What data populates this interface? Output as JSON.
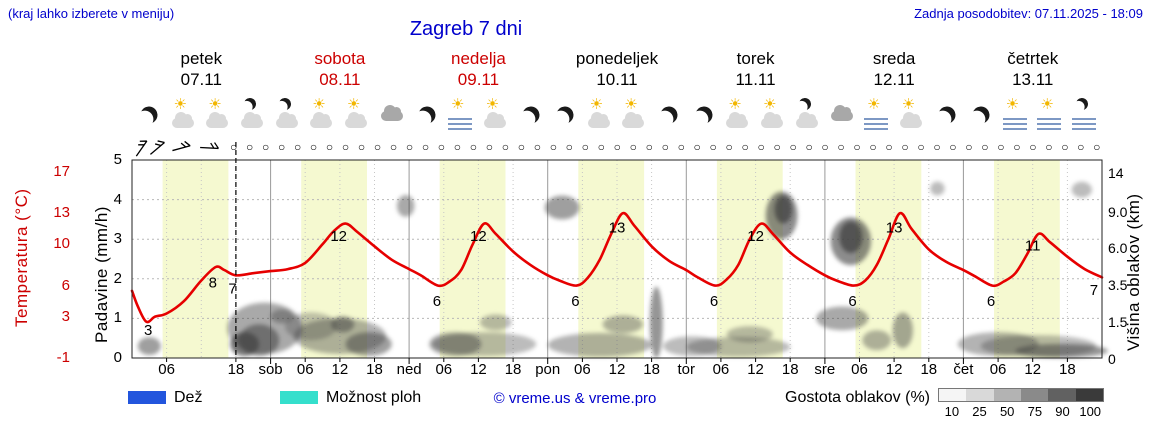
{
  "header": {
    "hint": "(kraj lahko izberete v meniju)",
    "title": "Zagreb 7 dni",
    "updated": "Zadnja posodobitev: 07.11.2025 - 18:09"
  },
  "colors": {
    "link_blue": "#0000cc",
    "weekend_red": "#cc0000",
    "temperature_curve": "#e60000",
    "daylight_band": "#f5f9d0"
  },
  "days": [
    {
      "name": "petek",
      "date": "07.11",
      "red": false
    },
    {
      "name": "sobota",
      "date": "08.11",
      "red": true
    },
    {
      "name": "nedelja",
      "date": "09.11",
      "red": true
    },
    {
      "name": "ponedeljek",
      "date": "10.11",
      "red": false
    },
    {
      "name": "torek",
      "date": "11.11",
      "red": false
    },
    {
      "name": "sreda",
      "date": "12.11",
      "red": false
    },
    {
      "name": "četrtek",
      "date": "13.11",
      "red": false
    }
  ],
  "icons": [
    "moon",
    "partly-sunny",
    "partly-sunny",
    "cloudy-moon",
    "cloudy-moon",
    "partly-sunny",
    "partly-sunny",
    "cloudy",
    "moon",
    "fog-sun",
    "partly-sunny",
    "moon",
    "moon",
    "partly-sunny",
    "partly-sunny",
    "moon",
    "moon",
    "partly-sunny",
    "partly-sunny",
    "cloudy-moon",
    "cloudy",
    "fog-sun",
    "partly-sunny",
    "moon",
    "moon",
    "fog-sun",
    "fog-sun",
    "fog-moon"
  ],
  "wind": {
    "barb_rotations": [
      -10,
      5,
      30,
      48
    ],
    "barb_offsets": [
      0,
      16,
      40,
      68
    ],
    "circle_count": 55,
    "circle_glyph": "○"
  },
  "axes": {
    "temperature": {
      "title": "Temperatura (°C)",
      "ticks": [
        17,
        13,
        10,
        6,
        3,
        -1
      ]
    },
    "precipitation": {
      "title": "Padavine (mm/h)",
      "ticks": [
        5,
        4,
        3,
        2,
        1,
        0
      ]
    },
    "cloud_height": {
      "title": "Višina oblakov (km)",
      "ticks": [
        {
          "label": "14",
          "u": 4.7
        },
        {
          "label": "9.0",
          "u": 3.71
        },
        {
          "label": "6.0",
          "u": 2.8
        },
        {
          "label": "3.5",
          "u": 1.87
        },
        {
          "label": "1.5",
          "u": 0.93
        },
        {
          "label": "0",
          "u": 0
        }
      ]
    }
  },
  "legend": {
    "rain_label": "Dež",
    "rain_color": "#2255dd",
    "showers_label": "Možnost ploh",
    "showers_color": "#35dfcc",
    "copyright": "© vreme.us & vreme.pro",
    "cloud_density_label": "Gostota oblakov (%)",
    "scale": [
      {
        "label": "10",
        "color": "#f5f5f5"
      },
      {
        "label": "25",
        "color": "#d9d9d9"
      },
      {
        "label": "50",
        "color": "#b3b3b3"
      },
      {
        "label": "75",
        "color": "#8a8a8a"
      },
      {
        "label": "90",
        "color": "#616161"
      },
      {
        "label": "100",
        "color": "#3a3a3a"
      }
    ]
  },
  "chart_data": {
    "type": "line",
    "title": "Zagreb 7 dni — meteogram",
    "x_unit": "ure od 07.11.2025 00:00",
    "x_range": [
      0,
      168
    ],
    "y_axes": {
      "precip_mmh": [
        0,
        5
      ],
      "temp_c": [
        -1,
        17.5
      ],
      "cloud_km": [
        0,
        14
      ]
    },
    "now_x": 18,
    "temperature_c": {
      "x": [
        0,
        1,
        2.5,
        4,
        6,
        9,
        12,
        14.5,
        16,
        18,
        21,
        24,
        27,
        30,
        33,
        35,
        37,
        39,
        42,
        45,
        48,
        50,
        53,
        55,
        57,
        59,
        61,
        63,
        66,
        69,
        72,
        74,
        77,
        79,
        81,
        83,
        85,
        87,
        90,
        93,
        96,
        98,
        101,
        103,
        105,
        107,
        109,
        111,
        114,
        117,
        120,
        122,
        125,
        127,
        129,
        131,
        133,
        135,
        138,
        141,
        144,
        146,
        149,
        151,
        153,
        155,
        157,
        159,
        162,
        165,
        168
      ],
      "y": [
        5.5,
        4.0,
        2.5,
        3.0,
        3.3,
        4.5,
        6.5,
        7.8,
        7.5,
        7.0,
        7.2,
        7.4,
        7.6,
        8.2,
        10.0,
        11.3,
        12.0,
        11.2,
        9.8,
        8.5,
        7.6,
        7.0,
        6.0,
        6.4,
        7.5,
        10.0,
        12.0,
        11.0,
        9.3,
        8.0,
        7.0,
        6.5,
        6.0,
        6.8,
        8.5,
        11.0,
        13.0,
        11.8,
        9.8,
        8.4,
        7.5,
        6.8,
        6.0,
        6.6,
        8.0,
        10.5,
        12.0,
        11.0,
        9.2,
        8.0,
        7.0,
        6.5,
        6.0,
        6.5,
        8.0,
        10.5,
        13.0,
        11.5,
        9.5,
        8.3,
        7.5,
        6.9,
        6.0,
        6.4,
        7.2,
        9.0,
        11.0,
        10.2,
        8.8,
        7.6,
        6.8
      ]
    },
    "temperature_labels": [
      {
        "x": 2.8,
        "y": 1.7,
        "text": "3"
      },
      {
        "x": 14,
        "y": 6.3,
        "text": "8"
      },
      {
        "x": 17.4,
        "y": 5.7,
        "text": "7"
      },
      {
        "x": 35.8,
        "y": 10.8,
        "text": "12"
      },
      {
        "x": 52.8,
        "y": 4.5,
        "text": "6"
      },
      {
        "x": 60,
        "y": 10.8,
        "text": "12"
      },
      {
        "x": 76.8,
        "y": 4.5,
        "text": "6"
      },
      {
        "x": 84,
        "y": 11.6,
        "text": "13"
      },
      {
        "x": 100.8,
        "y": 4.5,
        "text": "6"
      },
      {
        "x": 108,
        "y": 10.8,
        "text": "12"
      },
      {
        "x": 124.8,
        "y": 4.5,
        "text": "6"
      },
      {
        "x": 132,
        "y": 11.6,
        "text": "13"
      },
      {
        "x": 148.8,
        "y": 4.5,
        "text": "6"
      },
      {
        "x": 156,
        "y": 9.9,
        "text": "11"
      },
      {
        "x": 166.6,
        "y": 5.6,
        "text": "7"
      }
    ],
    "daylight_bands": [
      [
        5.3,
        16.7
      ],
      [
        29.3,
        40.7
      ],
      [
        53.3,
        64.7
      ],
      [
        77.3,
        88.7
      ],
      [
        101.3,
        112.7
      ],
      [
        125.3,
        136.7
      ],
      [
        149.3,
        160.7
      ]
    ],
    "x_ticks": [
      {
        "x": 6,
        "label": "06"
      },
      {
        "x": 18,
        "label": "18"
      },
      {
        "x": 24,
        "label": "sob"
      },
      {
        "x": 30,
        "label": "06"
      },
      {
        "x": 36,
        "label": "12"
      },
      {
        "x": 42,
        "label": "18"
      },
      {
        "x": 48,
        "label": "ned"
      },
      {
        "x": 54,
        "label": "06"
      },
      {
        "x": 60,
        "label": "12"
      },
      {
        "x": 66,
        "label": "18"
      },
      {
        "x": 72,
        "label": "pon"
      },
      {
        "x": 78,
        "label": "06"
      },
      {
        "x": 84,
        "label": "12"
      },
      {
        "x": 90,
        "label": "18"
      },
      {
        "x": 96,
        "label": "tor"
      },
      {
        "x": 102,
        "label": "06"
      },
      {
        "x": 108,
        "label": "12"
      },
      {
        "x": 114,
        "label": "18"
      },
      {
        "x": 120,
        "label": "sre"
      },
      {
        "x": 126,
        "label": "06"
      },
      {
        "x": 132,
        "label": "12"
      },
      {
        "x": 138,
        "label": "18"
      },
      {
        "x": 144,
        "label": "čet"
      },
      {
        "x": 150,
        "label": "06"
      },
      {
        "x": 156,
        "label": "12"
      },
      {
        "x": 162,
        "label": "18"
      }
    ],
    "cloud_patches_format": "[hour_center, axis_unit_center_0to5, width_hours, height_units, darkness_0to1]",
    "cloud_patches": [
      [
        3,
        0.3,
        4,
        0.45,
        0.5
      ],
      [
        19.5,
        0.35,
        5,
        0.6,
        0.7
      ],
      [
        23,
        0.75,
        13,
        1.3,
        0.45
      ],
      [
        22,
        0.45,
        7,
        0.8,
        0.55
      ],
      [
        26,
        1.05,
        4,
        0.35,
        0.4
      ],
      [
        31,
        0.8,
        9,
        0.7,
        0.3
      ],
      [
        36,
        0.55,
        16,
        0.9,
        0.4
      ],
      [
        36.5,
        0.85,
        4,
        0.4,
        0.5
      ],
      [
        41,
        0.35,
        8,
        0.6,
        0.5
      ],
      [
        47.4,
        3.84,
        3,
        0.55,
        0.45
      ],
      [
        56,
        0.35,
        9,
        0.6,
        0.45
      ],
      [
        61,
        0.35,
        18,
        0.6,
        0.35
      ],
      [
        63,
        0.9,
        5.5,
        0.4,
        0.35
      ],
      [
        74.5,
        3.8,
        6,
        0.6,
        0.5
      ],
      [
        81,
        0.33,
        18,
        0.6,
        0.4
      ],
      [
        85,
        0.85,
        7,
        0.45,
        0.4
      ],
      [
        90.8,
        0.9,
        2.2,
        1.8,
        0.55
      ],
      [
        97,
        0.3,
        10,
        0.5,
        0.35
      ],
      [
        105,
        0.28,
        18,
        0.5,
        0.35
      ],
      [
        107,
        0.6,
        8,
        0.4,
        0.35
      ],
      [
        112.5,
        3.6,
        5.5,
        1.2,
        0.6
      ],
      [
        112.8,
        3.75,
        3,
        0.7,
        0.75
      ],
      [
        123,
        1.0,
        9,
        0.6,
        0.45
      ],
      [
        124.5,
        2.95,
        7,
        1.2,
        0.6
      ],
      [
        124.5,
        3.05,
        4,
        0.8,
        0.75
      ],
      [
        129,
        0.45,
        5,
        0.5,
        0.4
      ],
      [
        133.5,
        0.7,
        3.5,
        0.9,
        0.45
      ],
      [
        139.5,
        4.28,
        2.5,
        0.35,
        0.35
      ],
      [
        150,
        0.35,
        14,
        0.6,
        0.4
      ],
      [
        157,
        0.3,
        20,
        0.55,
        0.35
      ],
      [
        161,
        0.18,
        16,
        0.35,
        0.55
      ],
      [
        164.5,
        4.25,
        3.5,
        0.4,
        0.35
      ]
    ]
  }
}
